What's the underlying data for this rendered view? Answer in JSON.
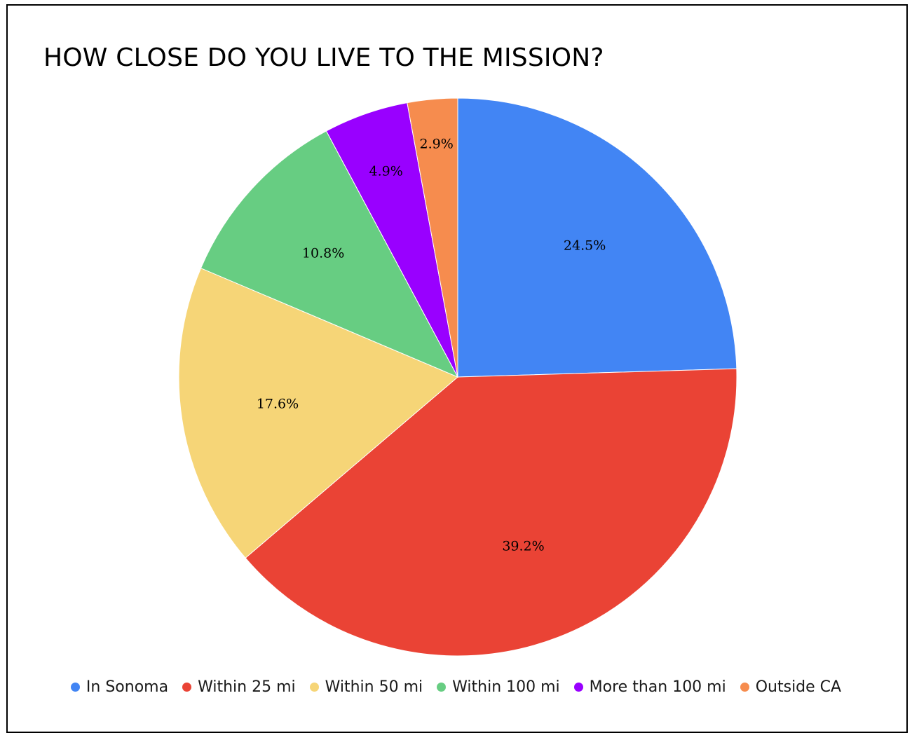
{
  "chart_data": {
    "type": "pie",
    "title": "HOW CLOSE DO YOU LIVE TO THE MISSION?",
    "slices": [
      {
        "name": "In Sonoma",
        "value": 24.5,
        "label": "24.5%",
        "color": "#4285f4"
      },
      {
        "name": "Within 25 mi",
        "value": 39.2,
        "label": "39.2%",
        "color": "#ea4335"
      },
      {
        "name": "Within 50 mi",
        "value": 17.6,
        "label": "17.6%",
        "color": "#f6d577"
      },
      {
        "name": "Within 100 mi",
        "value": 10.8,
        "label": "10.8%",
        "color": "#67cd82"
      },
      {
        "name": "More than 100 mi",
        "value": 4.9,
        "label": "4.9%",
        "color": "#9900ff"
      },
      {
        "name": "Outside CA",
        "value": 2.9,
        "label": "2.9%",
        "color": "#f68c4e"
      }
    ],
    "start_angle": "top",
    "direction": "clockwise",
    "legend_position": "bottom"
  }
}
